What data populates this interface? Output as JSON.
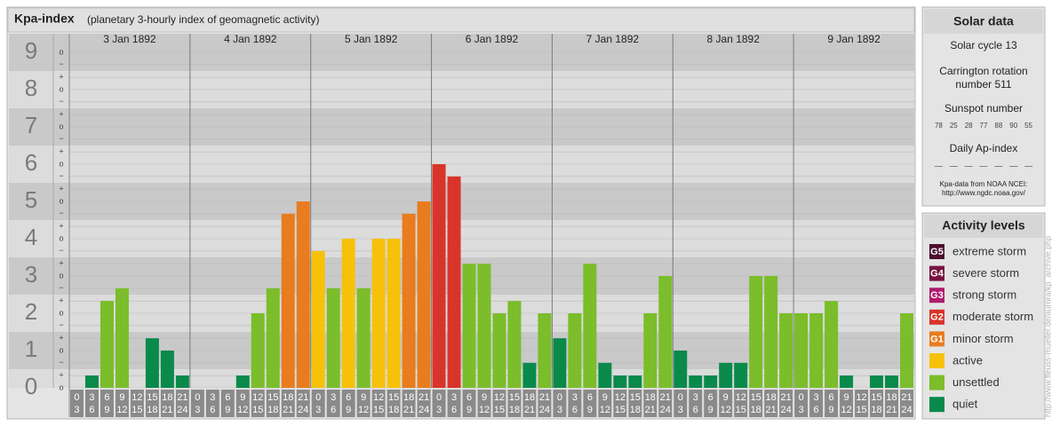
{
  "chart_data": {
    "type": "bar",
    "title": "Kpa-index",
    "subtitle": "(planetary 3-hourly index of geomagnetic activity)",
    "days": [
      "3 Jan 1892",
      "4 Jan 1892",
      "5 Jan 1892",
      "6 Jan 1892",
      "7 Jan 1892",
      "8 Jan 1892",
      "9 Jan 1892"
    ],
    "intervals": [
      {
        "start": 0,
        "end": 3
      },
      {
        "start": 3,
        "end": 6
      },
      {
        "start": 6,
        "end": 9
      },
      {
        "start": 9,
        "end": 12
      },
      {
        "start": 12,
        "end": 15
      },
      {
        "start": 15,
        "end": 18
      },
      {
        "start": 18,
        "end": 21
      },
      {
        "start": 21,
        "end": 24
      }
    ],
    "values": [
      0,
      0.33,
      2.33,
      2.67,
      0,
      1.33,
      1,
      0.33,
      0,
      0,
      0,
      0.33,
      2,
      2.67,
      4.67,
      5,
      3.67,
      2.67,
      4,
      2.67,
      4,
      4,
      4.67,
      5,
      6,
      5.67,
      3.33,
      3.33,
      2,
      2.33,
      0.67,
      2,
      1.33,
      2,
      3.33,
      0.67,
      0.33,
      0.33,
      2,
      3,
      1,
      0.33,
      0.33,
      0.67,
      0.67,
      3,
      3,
      2,
      2,
      2,
      2.33,
      0.33,
      0,
      0.33,
      0.33,
      2
    ],
    "colors": [
      "#0a8a4a",
      "#0a8a4a",
      "#7bbd2a",
      "#7bbd2a",
      "#0a8a4a",
      "#0a8a4a",
      "#0a8a4a",
      "#0a8a4a",
      "#0a8a4a",
      "#0a8a4a",
      "#0a8a4a",
      "#0a8a4a",
      "#7bbd2a",
      "#7bbd2a",
      "#e87c1e",
      "#e87c1e",
      "#f7c10a",
      "#7bbd2a",
      "#f7c10a",
      "#7bbd2a",
      "#f7c10a",
      "#f7c10a",
      "#e87c1e",
      "#e87c1e",
      "#d9342a",
      "#d9342a",
      "#7bbd2a",
      "#7bbd2a",
      "#7bbd2a",
      "#7bbd2a",
      "#0a8a4a",
      "#7bbd2a",
      "#0a8a4a",
      "#7bbd2a",
      "#7bbd2a",
      "#0a8a4a",
      "#0a8a4a",
      "#0a8a4a",
      "#7bbd2a",
      "#7bbd2a",
      "#0a8a4a",
      "#0a8a4a",
      "#0a8a4a",
      "#0a8a4a",
      "#0a8a4a",
      "#7bbd2a",
      "#7bbd2a",
      "#7bbd2a",
      "#7bbd2a",
      "#7bbd2a",
      "#7bbd2a",
      "#0a8a4a",
      "#0a8a4a",
      "#0a8a4a",
      "#0a8a4a",
      "#7bbd2a"
    ],
    "ylim": [
      0,
      9.5
    ],
    "yticks": [
      0,
      1,
      2,
      3,
      4,
      5,
      6,
      7,
      8,
      9
    ],
    "minor_yticks": [
      {
        "value": 0,
        "label": "o"
      },
      {
        "value": 0.33,
        "label": "+"
      },
      {
        "value": 0.67,
        "label": "−"
      },
      {
        "value": 1,
        "label": "o"
      },
      {
        "value": 1.33,
        "label": "+"
      },
      {
        "value": 1.67,
        "label": "−"
      },
      {
        "value": 2,
        "label": "o"
      },
      {
        "value": 2.33,
        "label": "+"
      },
      {
        "value": 2.67,
        "label": "−"
      },
      {
        "value": 3,
        "label": "o"
      },
      {
        "value": 3.33,
        "label": "+"
      },
      {
        "value": 3.67,
        "label": "−"
      },
      {
        "value": 4,
        "label": "o"
      },
      {
        "value": 4.33,
        "label": "+"
      },
      {
        "value": 4.67,
        "label": "−"
      },
      {
        "value": 5,
        "label": "o"
      },
      {
        "value": 5.33,
        "label": "+"
      },
      {
        "value": 5.67,
        "label": "−"
      },
      {
        "value": 6,
        "label": "o"
      },
      {
        "value": 6.33,
        "label": "+"
      },
      {
        "value": 6.67,
        "label": "−"
      },
      {
        "value": 7,
        "label": "o"
      },
      {
        "value": 7.33,
        "label": "+"
      },
      {
        "value": 7.67,
        "label": "−"
      },
      {
        "value": 8,
        "label": "o"
      },
      {
        "value": 8.33,
        "label": "+"
      },
      {
        "value": 8.67,
        "label": "−"
      },
      {
        "value": 9,
        "label": "o"
      }
    ],
    "grid": true
  },
  "solar_data": {
    "title": "Solar data",
    "cycle": "Solar cycle 13",
    "carrington": [
      "Carrington rotation",
      "number 511"
    ],
    "sunspot_label": "Sunspot number",
    "sunspot_numbers": [
      78,
      25,
      28,
      77,
      88,
      90,
      55
    ],
    "ap_label": "Daily Ap-index",
    "ap_values": [
      "—",
      "—",
      "—",
      "—",
      "—",
      "—",
      "—"
    ],
    "source": [
      "Kpa-data from NOAA NCEI:",
      "http://www.ngdc.noaa.gov/"
    ]
  },
  "activity_levels": {
    "title": "Activity levels",
    "levels": [
      {
        "badge": "G5",
        "name": "extreme storm",
        "color": "#4d0f2f"
      },
      {
        "badge": "G4",
        "name": "severe storm",
        "color": "#7a1242"
      },
      {
        "badge": "G3",
        "name": "strong storm",
        "color": "#b01b6e"
      },
      {
        "badge": "G2",
        "name": "moderate storm",
        "color": "#d9342a"
      },
      {
        "badge": "G1",
        "name": "minor storm",
        "color": "#e87c1e"
      },
      {
        "name": "active",
        "color": "#f7c10a"
      },
      {
        "name": "unsettled",
        "color": "#7bbd2a"
      },
      {
        "name": "quiet",
        "color": "#0a8a4a"
      }
    ]
  },
  "watermark": "http://www.fleuss-mueller.de/aurora/kp_archive.php"
}
